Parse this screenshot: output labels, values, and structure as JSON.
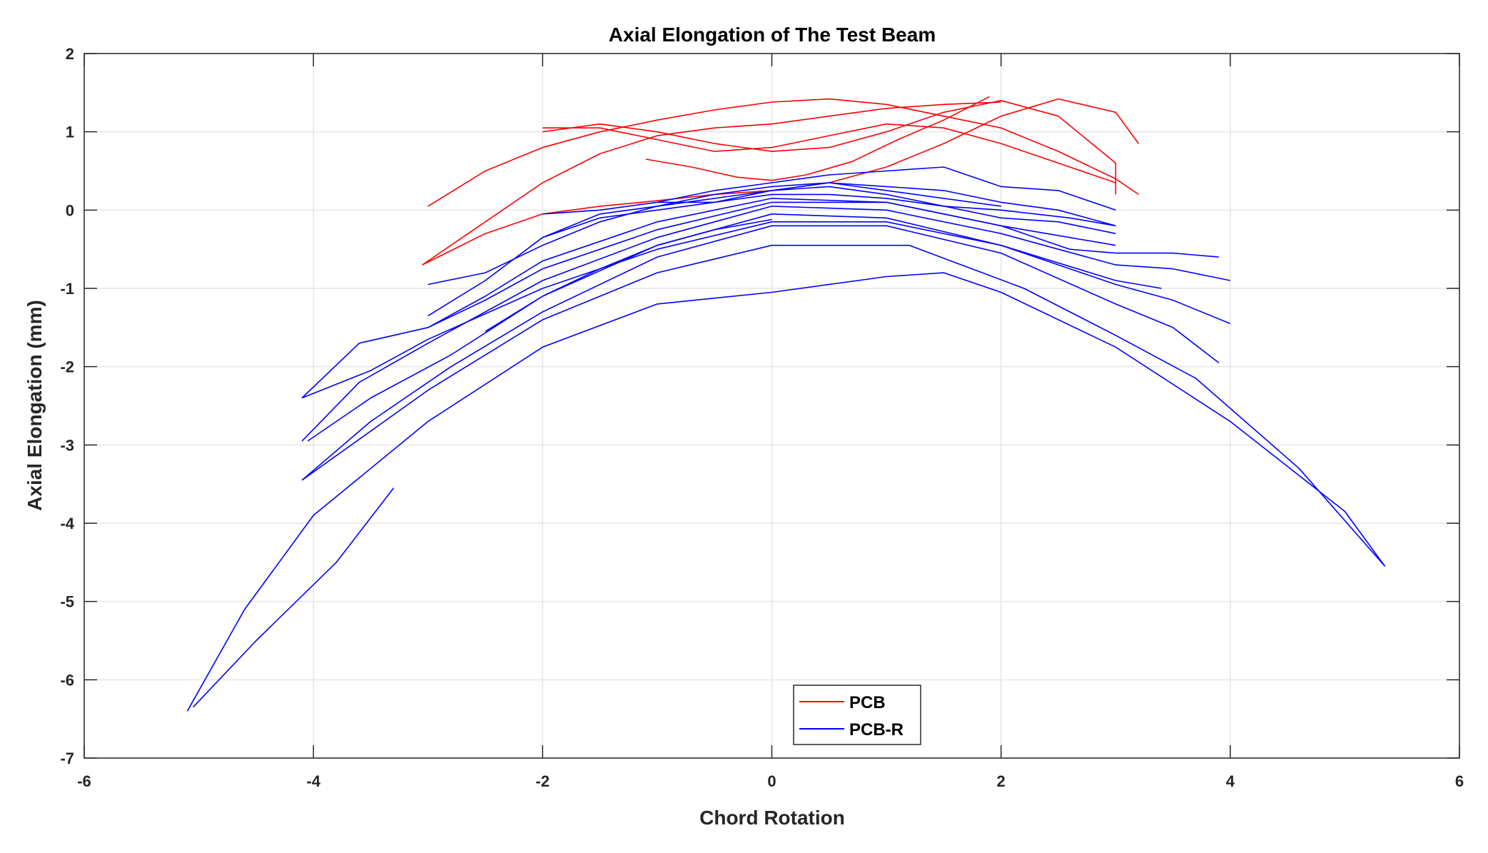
{
  "chart_data": {
    "type": "line",
    "title": "Axial Elongation of The Test Beam",
    "xlabel": "Chord Rotation",
    "ylabel": "Axial Elongation (mm)",
    "xlim": [
      -6,
      6
    ],
    "ylim": [
      -7,
      2
    ],
    "xticks": [
      -6,
      -4,
      -2,
      0,
      2,
      4,
      6
    ],
    "yticks": [
      -7,
      -6,
      -5,
      -4,
      -3,
      -2,
      -1,
      0,
      1,
      2
    ],
    "grid": true,
    "legend": {
      "position": "lower-center",
      "entries": [
        "PCB",
        "PCB-R"
      ]
    },
    "series": [
      {
        "name": "PCB",
        "color": "#ff0000",
        "loops": [
          [
            [
              -3.0,
              0.05
            ],
            [
              -2.5,
              0.5
            ],
            [
              -2.0,
              0.8
            ],
            [
              -1.5,
              1.0
            ],
            [
              -1.0,
              1.15
            ],
            [
              -0.5,
              1.28
            ],
            [
              0,
              1.38
            ],
            [
              0.5,
              1.42
            ],
            [
              1.0,
              1.35
            ],
            [
              1.5,
              1.2
            ],
            [
              2.0,
              1.05
            ],
            [
              2.5,
              0.75
            ],
            [
              3.0,
              0.4
            ],
            [
              3.2,
              0.2
            ]
          ],
          [
            [
              -3.05,
              -0.7
            ],
            [
              -2.5,
              -0.3
            ],
            [
              -2.0,
              -0.05
            ],
            [
              -1.5,
              0.05
            ],
            [
              -1.0,
              0.12
            ],
            [
              -0.5,
              0.2
            ],
            [
              0,
              0.25
            ],
            [
              0.5,
              0.35
            ],
            [
              1.0,
              0.55
            ],
            [
              1.5,
              0.85
            ],
            [
              2.0,
              1.2
            ],
            [
              2.5,
              1.42
            ],
            [
              3.0,
              1.25
            ],
            [
              3.2,
              0.85
            ]
          ],
          [
            [
              -2.0,
              1.0
            ],
            [
              -1.5,
              1.1
            ],
            [
              -1.0,
              1.0
            ],
            [
              -0.5,
              0.85
            ],
            [
              0,
              0.75
            ],
            [
              0.5,
              0.8
            ],
            [
              1.0,
              1.0
            ],
            [
              1.5,
              1.25
            ],
            [
              2.0,
              1.4
            ],
            [
              2.5,
              1.2
            ],
            [
              3.0,
              0.6
            ],
            [
              3.0,
              0.2
            ]
          ],
          [
            [
              -1.1,
              0.65
            ],
            [
              -0.7,
              0.55
            ],
            [
              -0.3,
              0.42
            ],
            [
              0,
              0.38
            ],
            [
              0.3,
              0.45
            ],
            [
              0.7,
              0.62
            ],
            [
              1.1,
              0.9
            ],
            [
              1.5,
              1.15
            ],
            [
              1.9,
              1.45
            ]
          ],
          [
            [
              -3.05,
              -0.7
            ],
            [
              -2.5,
              -0.15
            ],
            [
              -2.0,
              0.35
            ],
            [
              -1.5,
              0.72
            ],
            [
              -1.0,
              0.95
            ],
            [
              -0.5,
              1.05
            ],
            [
              0,
              1.1
            ],
            [
              0.5,
              1.2
            ],
            [
              1.0,
              1.3
            ],
            [
              1.5,
              1.35
            ],
            [
              2.0,
              1.38
            ]
          ],
          [
            [
              -2.0,
              1.05
            ],
            [
              -1.5,
              1.05
            ],
            [
              -1.0,
              0.9
            ],
            [
              -0.5,
              0.75
            ],
            [
              0,
              0.8
            ],
            [
              0.5,
              0.95
            ],
            [
              1.0,
              1.1
            ],
            [
              1.5,
              1.05
            ],
            [
              2.0,
              0.85
            ],
            [
              2.5,
              0.6
            ],
            [
              3.0,
              0.35
            ]
          ]
        ]
      },
      {
        "name": "PCB-R",
        "color": "#0000ff",
        "loops": [
          [
            [
              -5.1,
              -6.4
            ],
            [
              -4.6,
              -5.1
            ],
            [
              -4.0,
              -3.9
            ],
            [
              -3.0,
              -2.7
            ],
            [
              -2.0,
              -1.75
            ],
            [
              -1.0,
              -1.2
            ],
            [
              0,
              -1.05
            ],
            [
              1.0,
              -0.85
            ],
            [
              1.5,
              -0.8
            ],
            [
              2.0,
              -1.05
            ],
            [
              3.0,
              -1.75
            ],
            [
              4.0,
              -2.7
            ],
            [
              5.0,
              -3.85
            ],
            [
              5.35,
              -4.55
            ]
          ],
          [
            [
              -5.05,
              -6.35
            ],
            [
              -4.5,
              -5.5
            ],
            [
              -3.8,
              -4.5
            ],
            [
              -3.3,
              -3.55
            ]
          ],
          [
            [
              5.35,
              -4.55
            ],
            [
              4.6,
              -3.3
            ],
            [
              3.7,
              -2.15
            ],
            [
              3.0,
              -1.6
            ],
            [
              2.2,
              -1.0
            ],
            [
              1.2,
              -0.45
            ],
            [
              0,
              -0.45
            ],
            [
              -1.0,
              -0.8
            ],
            [
              -2.0,
              -1.4
            ],
            [
              -3.0,
              -2.3
            ],
            [
              -4.1,
              -3.45
            ]
          ],
          [
            [
              -4.1,
              -3.45
            ],
            [
              -3.5,
              -2.7
            ],
            [
              -2.8,
              -2.0
            ],
            [
              -2.0,
              -1.3
            ],
            [
              -1.0,
              -0.6
            ],
            [
              0,
              -0.2
            ],
            [
              1.0,
              -0.2
            ],
            [
              2.0,
              -0.55
            ],
            [
              3.0,
              -1.2
            ],
            [
              3.5,
              -1.5
            ],
            [
              3.9,
              -1.95
            ]
          ],
          [
            [
              -4.05,
              -2.95
            ],
            [
              -3.5,
              -2.4
            ],
            [
              -2.8,
              -1.85
            ],
            [
              -2.0,
              -1.1
            ],
            [
              -1.0,
              -0.45
            ],
            [
              0,
              -0.05
            ],
            [
              1.0,
              -0.1
            ],
            [
              2.0,
              -0.45
            ],
            [
              3.0,
              -0.95
            ],
            [
              3.5,
              -1.15
            ],
            [
              4.0,
              -1.45
            ]
          ],
          [
            [
              -4.1,
              -2.95
            ],
            [
              -3.6,
              -2.2
            ],
            [
              -3.0,
              -1.7
            ],
            [
              -2.0,
              -0.9
            ],
            [
              -1.0,
              -0.35
            ],
            [
              0,
              0.05
            ],
            [
              1.0,
              0.0
            ],
            [
              2.0,
              -0.3
            ],
            [
              3.0,
              -0.7
            ],
            [
              3.5,
              -0.75
            ],
            [
              4.0,
              -0.9
            ]
          ],
          [
            [
              -4.1,
              -2.4
            ],
            [
              -3.6,
              -1.7
            ],
            [
              -3.0,
              -1.5
            ],
            [
              -2.5,
              -1.15
            ],
            [
              -2.0,
              -0.75
            ],
            [
              -1.0,
              -0.25
            ],
            [
              0,
              0.1
            ],
            [
              1.0,
              0.1
            ],
            [
              2.0,
              -0.2
            ],
            [
              2.6,
              -0.5
            ],
            [
              3.0,
              -0.55
            ],
            [
              3.5,
              -0.55
            ],
            [
              3.9,
              -0.6
            ]
          ],
          [
            [
              -4.1,
              -2.4
            ],
            [
              -3.5,
              -2.05
            ],
            [
              -3.0,
              -1.65
            ],
            [
              -2.0,
              -1.0
            ],
            [
              -1.0,
              -0.5
            ],
            [
              0,
              -0.15
            ],
            [
              1.0,
              -0.15
            ],
            [
              2.0,
              -0.45
            ],
            [
              3.0,
              -0.9
            ],
            [
              3.4,
              -1.0
            ]
          ],
          [
            [
              -3.0,
              -0.95
            ],
            [
              -2.5,
              -0.8
            ],
            [
              -2.0,
              -0.45
            ],
            [
              -1.5,
              -0.15
            ],
            [
              -1.0,
              0.05
            ],
            [
              -0.5,
              0.15
            ],
            [
              0,
              0.25
            ],
            [
              0.5,
              0.3
            ],
            [
              1.0,
              0.2
            ],
            [
              2.0,
              -0.1
            ],
            [
              2.5,
              -0.15
            ],
            [
              3.0,
              -0.3
            ]
          ],
          [
            [
              -3.0,
              -1.35
            ],
            [
              -2.5,
              -0.9
            ],
            [
              -2.0,
              -0.35
            ],
            [
              -1.5,
              -0.05
            ],
            [
              -1.0,
              0.05
            ],
            [
              -0.5,
              0.2
            ],
            [
              0,
              0.3
            ],
            [
              0.5,
              0.35
            ],
            [
              1.0,
              0.3
            ],
            [
              1.5,
              0.25
            ],
            [
              2.0,
              0.1
            ],
            [
              2.5,
              0.0
            ],
            [
              3.0,
              -0.2
            ]
          ],
          [
            [
              -3.0,
              -1.5
            ],
            [
              -2.5,
              -1.1
            ],
            [
              -2.0,
              -0.65
            ],
            [
              -1.0,
              -0.15
            ],
            [
              0,
              0.15
            ],
            [
              1.0,
              0.1
            ],
            [
              2.0,
              -0.2
            ],
            [
              3.0,
              -0.45
            ]
          ],
          [
            [
              -2.0,
              -0.05
            ],
            [
              -1.5,
              0.0
            ],
            [
              -1.0,
              0.1
            ],
            [
              -0.5,
              0.25
            ],
            [
              0,
              0.35
            ],
            [
              0.5,
              0.45
            ],
            [
              1.0,
              0.5
            ],
            [
              1.5,
              0.55
            ],
            [
              2.0,
              0.3
            ],
            [
              2.5,
              0.25
            ],
            [
              3.0,
              0.0
            ]
          ],
          [
            [
              -2.0,
              -0.35
            ],
            [
              -1.5,
              -0.1
            ],
            [
              -1.0,
              0.0
            ],
            [
              -0.5,
              0.1
            ],
            [
              0,
              0.2
            ],
            [
              0.5,
              0.2
            ],
            [
              1.0,
              0.15
            ],
            [
              1.5,
              0.05
            ],
            [
              2.0,
              0.0
            ],
            [
              2.6,
              -0.1
            ],
            [
              3.0,
              -0.2
            ]
          ],
          [
            [
              -1.0,
              0.1
            ],
            [
              -0.5,
              0.1
            ],
            [
              0,
              0.25
            ],
            [
              0.5,
              0.35
            ],
            [
              1.0,
              0.25
            ],
            [
              1.5,
              0.15
            ],
            [
              2.0,
              0.05
            ]
          ],
          [
            [
              -2.5,
              -1.55
            ],
            [
              -2.0,
              -1.1
            ],
            [
              -1.5,
              -0.75
            ],
            [
              -1.0,
              -0.45
            ],
            [
              -0.5,
              -0.25
            ],
            [
              0,
              -0.12
            ]
          ]
        ]
      }
    ]
  },
  "plot": {
    "title": "Axial Elongation of The Test Beam",
    "xlabel": "Chord Rotation",
    "ylabel": "Axial Elongation (mm)"
  },
  "legend": {
    "entries": [
      {
        "label": "PCB",
        "color": "#ff0000"
      },
      {
        "label": "PCB-R",
        "color": "#0000ff"
      }
    ]
  }
}
